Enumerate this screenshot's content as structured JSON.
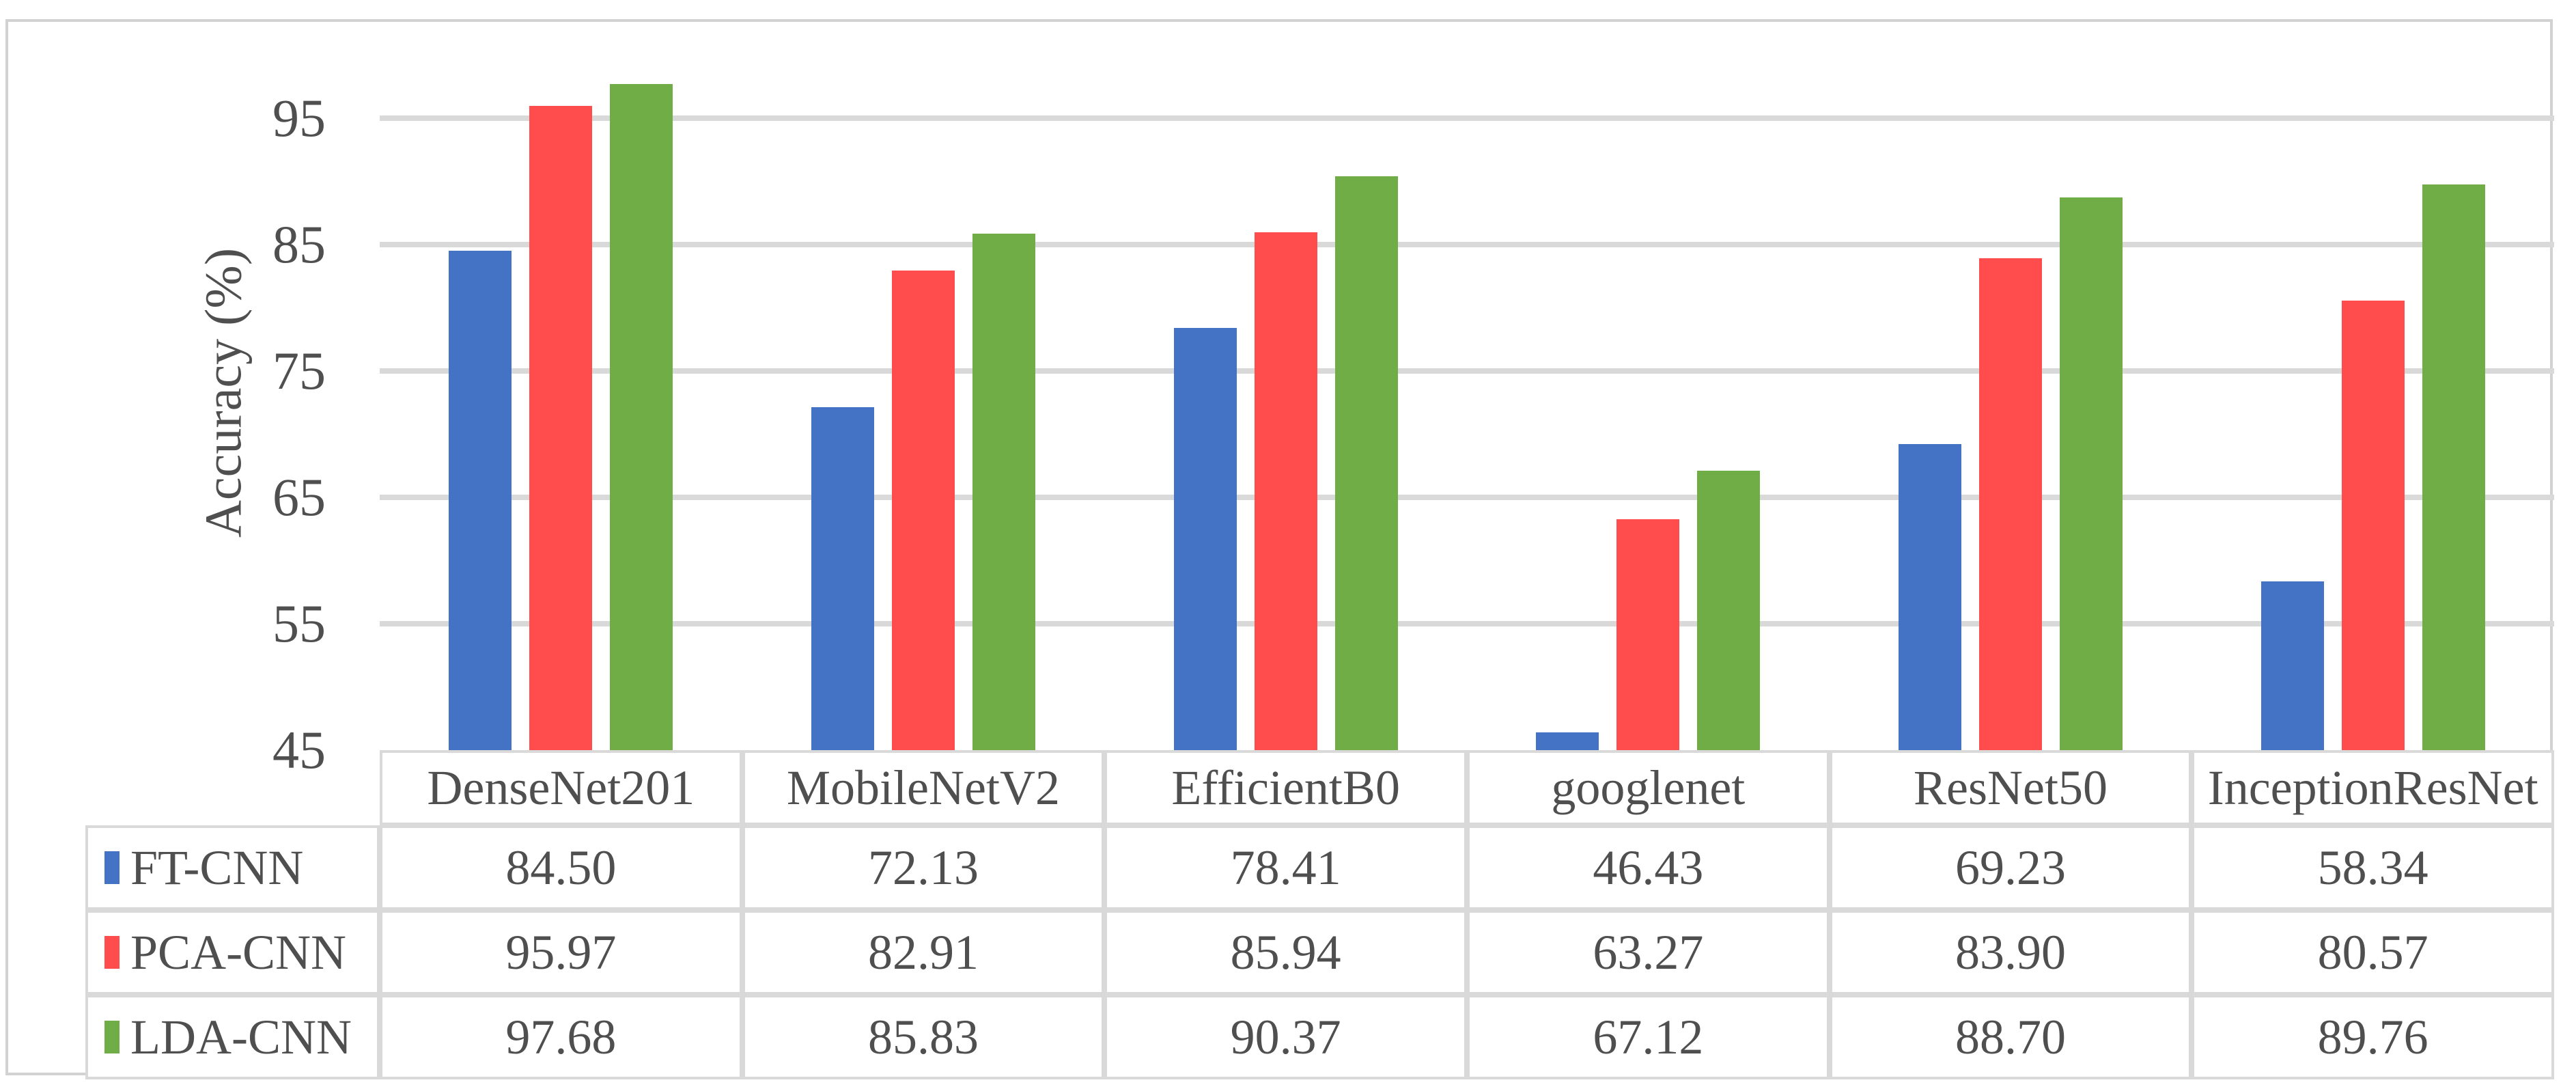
{
  "figure": {
    "background": "#ffffff",
    "border_color": "#d2d2d2",
    "gridline_color": "#d9d9d9",
    "text_color": "#4f4f4f"
  },
  "chart_data": {
    "type": "bar",
    "title": "",
    "xlabel": "",
    "ylabel": "Accuracy (%)",
    "categories": [
      "DenseNet201",
      "MobileNetV2",
      "EfficientB0",
      "googlenet",
      "ResNet50",
      "InceptionResNet"
    ],
    "series": [
      {
        "name": "FT-CNN",
        "color": "#4472c4",
        "values": [
          84.5,
          72.13,
          78.41,
          46.43,
          69.23,
          58.34
        ]
      },
      {
        "name": "PCA-CNN",
        "color": "#ff4c4c",
        "values": [
          95.97,
          82.91,
          85.94,
          63.27,
          83.9,
          80.57
        ]
      },
      {
        "name": "LDA-CNN",
        "color": "#70ad47",
        "values": [
          97.68,
          85.83,
          90.37,
          67.12,
          88.7,
          89.76
        ]
      }
    ],
    "ylim": [
      45,
      100
    ],
    "yticks": [
      45,
      55,
      65,
      75,
      85,
      95
    ],
    "grid": true,
    "legend_position": "table-left",
    "value_decimals": 2
  }
}
